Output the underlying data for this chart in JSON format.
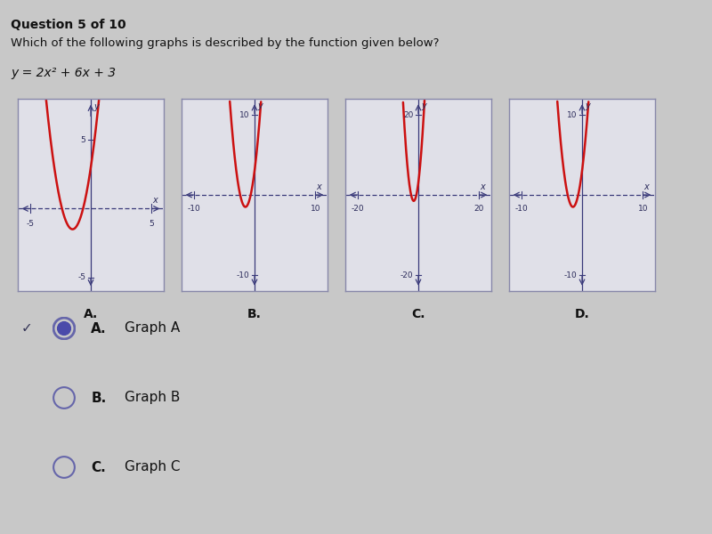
{
  "title_line1": "Question 5 of 10",
  "title_line2": "Which of the following graphs is described by the function given below?",
  "function_label": "y = 2x² + 6x + 3",
  "background_color": "#c8c8c8",
  "panel_bg": "#e0e0e8",
  "panel_border": "#8888aa",
  "curve_color": "#cc1111",
  "axis_color": "#3a3a7a",
  "text_color": "#111111",
  "label_color": "#2a2a5a",
  "graphs": [
    {
      "label": "A",
      "xlim": [
        -6,
        6
      ],
      "ylim": [
        -6,
        8
      ],
      "xtick_neg": -5,
      "xtick_pos": 5,
      "ytick_neg": -5,
      "ytick_pos": 5,
      "top_ylabel": "y",
      "right_xlabel": "x"
    },
    {
      "label": "B",
      "xlim": [
        -12,
        12
      ],
      "ylim": [
        -12,
        12
      ],
      "xtick_neg": -10,
      "xtick_pos": 10,
      "ytick_neg": -10,
      "ytick_pos": 10,
      "top_ylabel": "y",
      "right_xlabel": "x"
    },
    {
      "label": "C",
      "xlim": [
        -24,
        24
      ],
      "ylim": [
        -24,
        24
      ],
      "xtick_neg": -20,
      "xtick_pos": 20,
      "ytick_neg": -20,
      "ytick_pos": 20,
      "top_ylabel": "y",
      "right_xlabel": "x"
    },
    {
      "label": "D",
      "xlim": [
        -12,
        12
      ],
      "ylim": [
        -12,
        12
      ],
      "xtick_neg": -10,
      "xtick_pos": 10,
      "ytick_neg": -10,
      "ytick_pos": 10,
      "top_ylabel": "y",
      "right_xlabel": "x"
    }
  ],
  "answer_options": [
    {
      "letter": "A.",
      "text": "Graph A",
      "selected": true,
      "correct": true
    },
    {
      "letter": "B.",
      "text": "Graph B",
      "selected": false,
      "correct": false
    },
    {
      "letter": "C.",
      "text": "Graph C",
      "selected": false,
      "correct": false
    }
  ],
  "radio_fill_color": "#4a4aaa",
  "radio_border_color": "#6666aa",
  "check_color": "#333355"
}
